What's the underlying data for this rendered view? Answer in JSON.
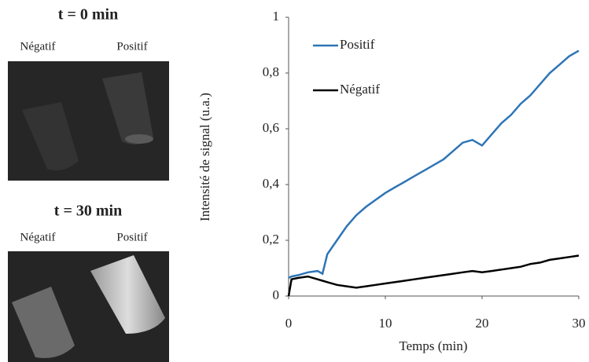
{
  "figure_panels": [
    {
      "title": "t = 0 min",
      "labels": [
        "Négatif",
        "Positif"
      ]
    },
    {
      "title": "t = 30 min",
      "labels": [
        "Négatif",
        "Positif"
      ]
    }
  ],
  "chart_data": {
    "type": "line",
    "x_label": "Temps (min)",
    "y_label": "Intensité de signal (u.a.)",
    "x": [
      0,
      0.3,
      1,
      2,
      3,
      3.5,
      4,
      5,
      6,
      7,
      8,
      9,
      10,
      11,
      12,
      13,
      14,
      15,
      16,
      17,
      18,
      19,
      20,
      21,
      22,
      23,
      24,
      25,
      26,
      27,
      28,
      29,
      30
    ],
    "series": [
      {
        "name": "Positif",
        "color": "#2e75b6",
        "values": [
          0.065,
          0.07,
          0.075,
          0.085,
          0.09,
          0.08,
          0.15,
          0.2,
          0.25,
          0.29,
          0.32,
          0.345,
          0.37,
          0.39,
          0.41,
          0.43,
          0.45,
          0.47,
          0.49,
          0.52,
          0.55,
          0.56,
          0.54,
          0.58,
          0.62,
          0.65,
          0.69,
          0.72,
          0.76,
          0.8,
          0.83,
          0.86,
          0.88
        ]
      },
      {
        "name": "Négatif",
        "color": "#000000",
        "values": [
          0.0,
          0.06,
          0.065,
          0.07,
          0.06,
          0.055,
          0.05,
          0.04,
          0.035,
          0.03,
          0.035,
          0.04,
          0.045,
          0.05,
          0.055,
          0.06,
          0.065,
          0.07,
          0.075,
          0.08,
          0.085,
          0.09,
          0.085,
          0.09,
          0.095,
          0.1,
          0.105,
          0.115,
          0.12,
          0.13,
          0.135,
          0.14,
          0.145
        ]
      }
    ],
    "xlim": [
      0,
      30
    ],
    "xticks": [
      0,
      10,
      20,
      30
    ],
    "ylim": [
      0,
      1
    ],
    "yticks": [
      0,
      {
        "value": 0.2,
        "label": "0,2"
      },
      {
        "value": 0.4,
        "label": "0,4"
      },
      {
        "value": 0.6,
        "label": "0,6"
      },
      {
        "value": 0.8,
        "label": "0,8"
      },
      1
    ],
    "legend": "upper-left"
  }
}
